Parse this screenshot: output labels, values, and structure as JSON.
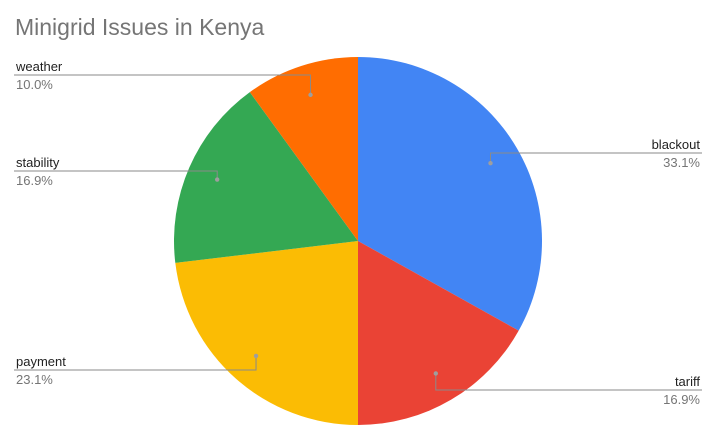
{
  "chart_data": {
    "type": "pie",
    "title": "Minigrid Issues in Kenya",
    "categories": [
      "blackout",
      "tariff",
      "payment",
      "stability",
      "weather"
    ],
    "values": [
      33.1,
      16.9,
      23.1,
      16.9,
      10.0
    ],
    "percent_labels": [
      "33.1%",
      "16.9%",
      "23.1%",
      "16.9%",
      "10.0%"
    ],
    "colors": [
      "#4285f4",
      "#ea4335",
      "#fbbc04",
      "#34a853",
      "#ff6d01"
    ],
    "start_angle_deg": 0,
    "direction": "clockwise",
    "legend": "none",
    "label_placement": "outside with leader lines"
  }
}
